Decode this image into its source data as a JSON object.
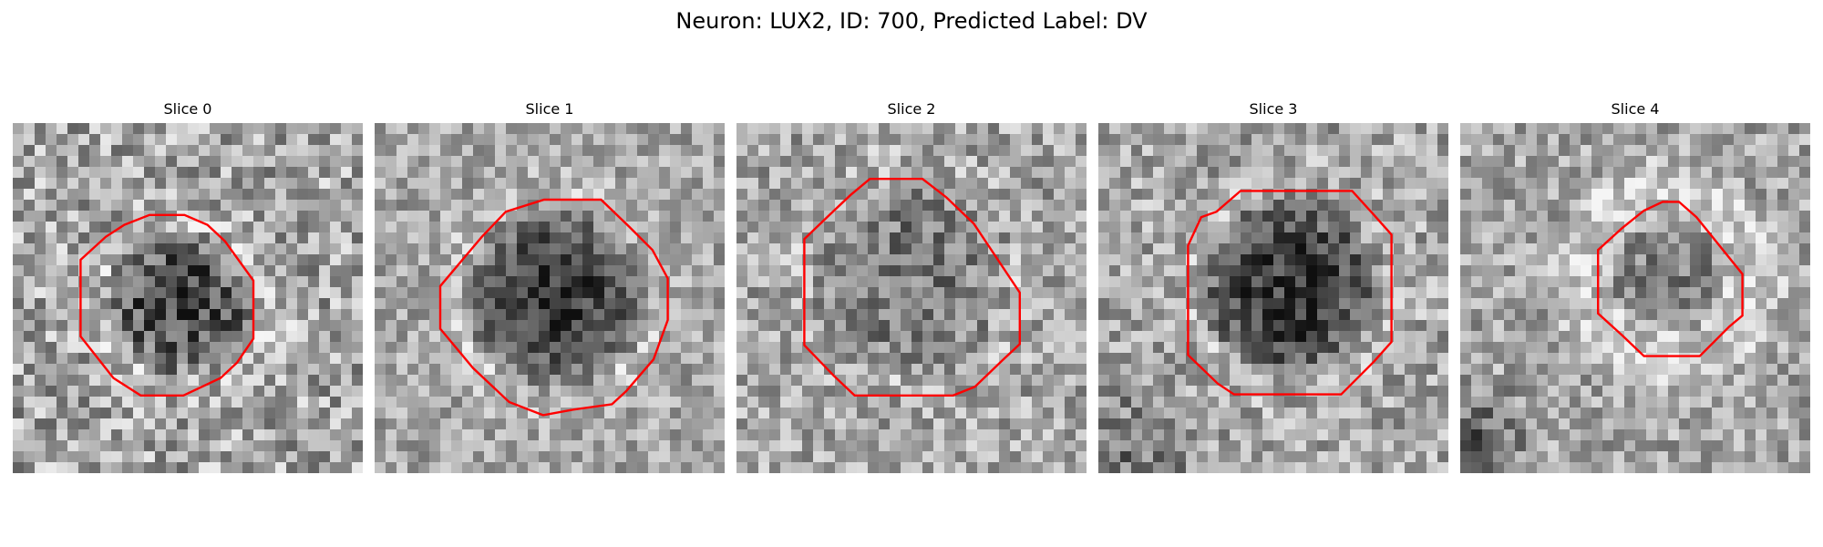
{
  "title": "Neuron: LUX2, ID: 700, Predicted Label: DV",
  "contour_color": "#ff0000",
  "panels": [
    {
      "label": "Slice 0"
    },
    {
      "label": "Slice 1"
    },
    {
      "label": "Slice 2"
    },
    {
      "label": "Slice 3"
    },
    {
      "label": "Slice 4"
    }
  ]
}
